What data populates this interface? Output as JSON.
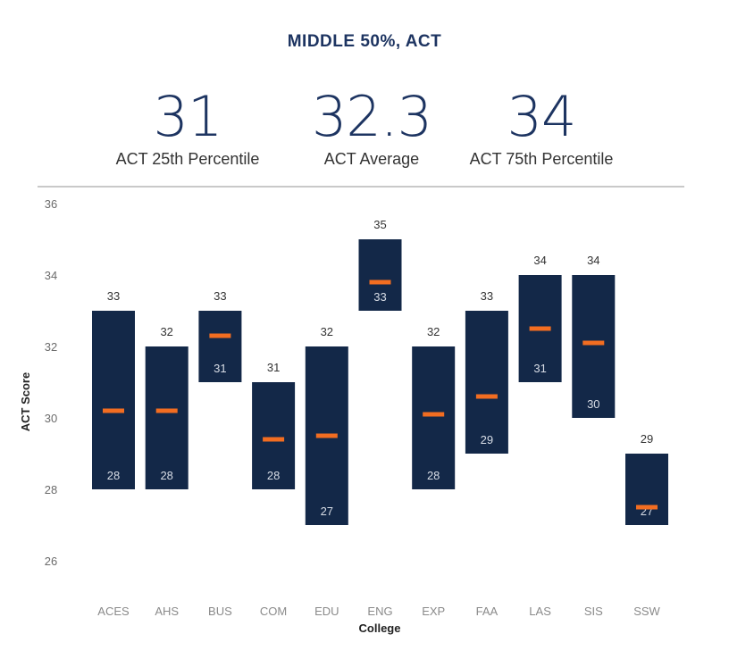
{
  "title": "MIDDLE 50%, ACT",
  "stats": [
    {
      "value": "31",
      "label": "ACT 25th Percentile"
    },
    {
      "value": "32.3",
      "label": "ACT Average"
    },
    {
      "value": "34",
      "label": "ACT 75th Percentile"
    }
  ],
  "colors": {
    "box": "#132848",
    "avg": "#f26d21",
    "title": "#1d3461"
  },
  "chart_data": {
    "type": "floating-bar",
    "xlabel": "College",
    "ylabel": "ACT Score",
    "ylim": [
      26,
      36
    ],
    "yticks": [
      26,
      28,
      30,
      32,
      34,
      36
    ],
    "categories": [
      "ACES",
      "AHS",
      "BUS",
      "COM",
      "EDU",
      "ENG",
      "EXP",
      "FAA",
      "LAS",
      "SIS",
      "SSW"
    ],
    "series": [
      {
        "name": "25th Percentile",
        "values": [
          28,
          28,
          31,
          28,
          27,
          33,
          28,
          29,
          31,
          30,
          27
        ]
      },
      {
        "name": "75th Percentile",
        "values": [
          33,
          32,
          33,
          31,
          32,
          35,
          32,
          33,
          34,
          34,
          29
        ]
      },
      {
        "name": "Average",
        "values": [
          30.2,
          30.2,
          32.3,
          29.4,
          29.5,
          33.8,
          30.1,
          30.6,
          32.5,
          32.1,
          27.5
        ]
      }
    ]
  }
}
